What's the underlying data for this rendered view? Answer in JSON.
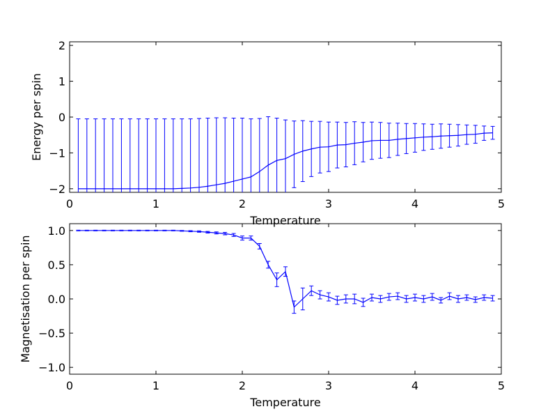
{
  "chart_data": [
    {
      "id": "energy",
      "type": "line",
      "xlabel": "Temperature",
      "ylabel": "Energy per spin",
      "xlim": [
        0,
        5
      ],
      "ylim": [
        -2.1,
        2.1
      ],
      "xticks": [
        0,
        1,
        2,
        3,
        4,
        5
      ],
      "yticks": [
        -2,
        -1,
        0,
        1,
        2
      ],
      "xtick_labels": [
        "0",
        "1",
        "2",
        "3",
        "4",
        "5"
      ],
      "ytick_labels": [
        "−2",
        "−1",
        "0",
        "1",
        "2"
      ],
      "grid": false,
      "color": "#0000ff",
      "series": [
        {
          "x": [
            0.1,
            0.2,
            0.3,
            0.4,
            0.5,
            0.6,
            0.7,
            0.8,
            0.9,
            1.0,
            1.1,
            1.2,
            1.3,
            1.4,
            1.5,
            1.6,
            1.7,
            1.8,
            1.9,
            2.0,
            2.1,
            2.2,
            2.3,
            2.4,
            2.5,
            2.6,
            2.7,
            2.8,
            2.9,
            3.0,
            3.1,
            3.2,
            3.3,
            3.4,
            3.5,
            3.6,
            3.7,
            3.8,
            3.9,
            4.0,
            4.1,
            4.2,
            4.3,
            4.4,
            4.5,
            4.6,
            4.7,
            4.8,
            4.9
          ],
          "y": [
            -2.0,
            -2.0,
            -2.0,
            -2.0,
            -2.0,
            -2.0,
            -2.0,
            -2.0,
            -2.0,
            -2.0,
            -2.0,
            -2.0,
            -1.99,
            -1.98,
            -1.96,
            -1.93,
            -1.89,
            -1.85,
            -1.79,
            -1.73,
            -1.67,
            -1.52,
            -1.34,
            -1.21,
            -1.16,
            -1.04,
            -0.95,
            -0.89,
            -0.84,
            -0.83,
            -0.78,
            -0.77,
            -0.73,
            -0.7,
            -0.66,
            -0.65,
            -0.65,
            -0.62,
            -0.6,
            -0.58,
            -0.56,
            -0.55,
            -0.53,
            -0.52,
            -0.51,
            -0.49,
            -0.48,
            -0.45,
            -0.44
          ],
          "yerr": [
            1.95,
            1.95,
            1.95,
            1.95,
            1.95,
            1.95,
            1.95,
            1.95,
            1.95,
            1.95,
            1.95,
            1.95,
            1.94,
            1.93,
            1.92,
            1.9,
            1.87,
            1.83,
            1.76,
            1.7,
            1.62,
            1.48,
            1.35,
            1.18,
            1.08,
            0.93,
            0.85,
            0.77,
            0.72,
            0.69,
            0.64,
            0.62,
            0.6,
            0.55,
            0.52,
            0.5,
            0.48,
            0.45,
            0.42,
            0.4,
            0.37,
            0.35,
            0.34,
            0.32,
            0.3,
            0.27,
            0.25,
            0.2,
            0.18
          ]
        }
      ]
    },
    {
      "id": "magnetisation",
      "type": "line",
      "xlabel": "Temperature",
      "ylabel": "Magnetisation per spin",
      "xlim": [
        0,
        5
      ],
      "ylim": [
        -1.1,
        1.1
      ],
      "xticks": [
        0,
        1,
        2,
        3,
        4,
        5
      ],
      "yticks": [
        -1.0,
        -0.5,
        0.0,
        0.5,
        1.0
      ],
      "xtick_labels": [
        "0",
        "1",
        "2",
        "3",
        "4",
        "5"
      ],
      "ytick_labels": [
        "−1.0",
        "−0.5",
        "0.0",
        "0.5",
        "1.0"
      ],
      "grid": false,
      "color": "#0000ff",
      "series": [
        {
          "x": [
            0.1,
            0.2,
            0.3,
            0.4,
            0.5,
            0.6,
            0.7,
            0.8,
            0.9,
            1.0,
            1.1,
            1.2,
            1.3,
            1.4,
            1.5,
            1.6,
            1.7,
            1.8,
            1.9,
            2.0,
            2.1,
            2.2,
            2.3,
            2.4,
            2.5,
            2.6,
            2.7,
            2.8,
            2.9,
            3.0,
            3.1,
            3.2,
            3.3,
            3.4,
            3.5,
            3.6,
            3.7,
            3.8,
            3.9,
            4.0,
            4.1,
            4.2,
            4.3,
            4.4,
            4.5,
            4.6,
            4.7,
            4.8,
            4.9
          ],
          "y": [
            1.0,
            1.0,
            1.0,
            1.0,
            1.0,
            1.0,
            1.0,
            1.0,
            1.0,
            1.0,
            1.0,
            1.0,
            0.995,
            0.99,
            0.985,
            0.975,
            0.965,
            0.955,
            0.935,
            0.89,
            0.89,
            0.77,
            0.5,
            0.28,
            0.4,
            -0.12,
            0.0,
            0.12,
            0.06,
            0.03,
            -0.02,
            0.0,
            0.0,
            -0.05,
            0.02,
            0.0,
            0.03,
            0.04,
            0.0,
            0.02,
            0.0,
            0.03,
            -0.02,
            0.04,
            0.0,
            0.02,
            -0.01,
            0.02,
            0.01
          ],
          "yerr": [
            0.005,
            0.005,
            0.005,
            0.005,
            0.005,
            0.005,
            0.005,
            0.005,
            0.005,
            0.005,
            0.005,
            0.005,
            0.006,
            0.008,
            0.01,
            0.012,
            0.015,
            0.018,
            0.022,
            0.03,
            0.03,
            0.04,
            0.05,
            0.1,
            0.07,
            0.09,
            0.16,
            0.07,
            0.06,
            0.06,
            0.06,
            0.06,
            0.07,
            0.06,
            0.05,
            0.05,
            0.05,
            0.05,
            0.05,
            0.05,
            0.05,
            0.05,
            0.04,
            0.05,
            0.05,
            0.04,
            0.04,
            0.04,
            0.04
          ]
        }
      ]
    }
  ]
}
